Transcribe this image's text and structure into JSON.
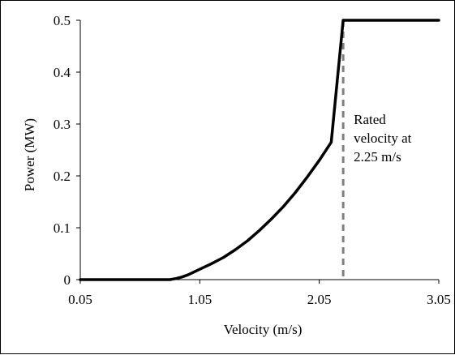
{
  "chart_data": {
    "type": "line",
    "xlabel": "Velocity (m/s)",
    "ylabel": "Power (MW)",
    "xlim": [
      0.05,
      3.05
    ],
    "ylim": [
      0,
      0.5
    ],
    "x_ticks": [
      0.05,
      1.05,
      2.05,
      3.05
    ],
    "x_tick_labels": [
      "0.05",
      "1.05",
      "2.05",
      "3.05"
    ],
    "y_ticks": [
      0,
      0.1,
      0.2,
      0.3,
      0.4,
      0.5
    ],
    "y_tick_labels": [
      "0",
      "0.1",
      "0.2",
      "0.3",
      "0.4",
      "0.5"
    ],
    "grid": false,
    "series": [
      {
        "x": [
          0.05,
          0.25,
          0.45,
          0.65,
          0.8,
          0.85,
          0.9,
          0.95,
          1.05,
          1.15,
          1.25,
          1.35,
          1.45,
          1.55,
          1.65,
          1.75,
          1.85,
          1.95,
          2.05,
          2.15,
          2.25,
          2.35,
          2.55,
          2.75,
          2.95,
          3.05
        ],
        "y": [
          0,
          0,
          0,
          0,
          0,
          0.002,
          0.005,
          0.009,
          0.02,
          0.031,
          0.043,
          0.058,
          0.075,
          0.095,
          0.117,
          0.141,
          0.168,
          0.198,
          0.23,
          0.265,
          0.5,
          0.5,
          0.5,
          0.5,
          0.5,
          0.5
        ],
        "color": "#000000"
      }
    ],
    "annotation": {
      "x": 2.25,
      "lines": [
        "Rated",
        "velocity at",
        "2.25 m/s"
      ],
      "line_style": "dashed",
      "line_color": "#808080"
    }
  }
}
